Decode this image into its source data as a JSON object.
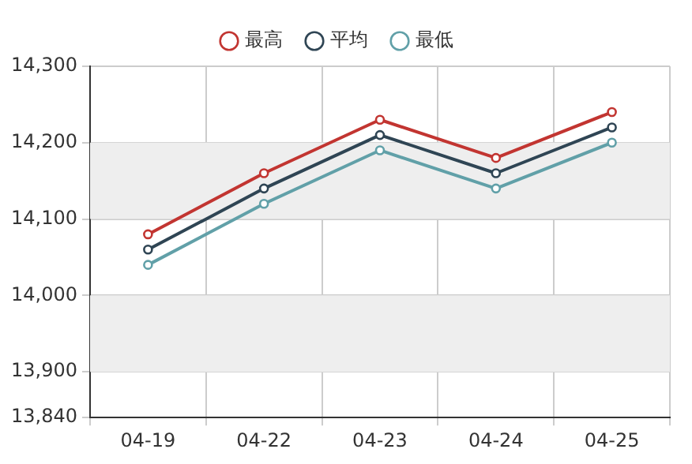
{
  "chart_data": {
    "type": "line",
    "categories": [
      "04-19",
      "04-22",
      "04-23",
      "04-24",
      "04-25"
    ],
    "series": [
      {
        "name": "最高",
        "color": "#c23531",
        "values": [
          14080,
          14160,
          14230,
          14180,
          14240
        ]
      },
      {
        "name": "平均",
        "color": "#2f4554",
        "values": [
          14060,
          14140,
          14210,
          14160,
          14220
        ]
      },
      {
        "name": "最低",
        "color": "#61a0a8",
        "values": [
          14040,
          14120,
          14190,
          14140,
          14200
        ]
      }
    ],
    "ylim": [
      13840,
      14300
    ],
    "yticks": [
      {
        "value": 13840,
        "label": "13,840"
      },
      {
        "value": 13900,
        "label": "13,900"
      },
      {
        "value": 14000,
        "label": "14,000"
      },
      {
        "value": 14100,
        "label": "14,100"
      },
      {
        "value": 14200,
        "label": "14,200"
      },
      {
        "value": 14300,
        "label": "14,300"
      }
    ],
    "bands": [
      {
        "axis": "y",
        "from": 13900,
        "to": 14000,
        "color": "#eeeeee"
      },
      {
        "axis": "y",
        "from": 14100,
        "to": 14200,
        "color": "#eeeeee"
      }
    ],
    "grid": true,
    "legend": "top",
    "marker": "circle",
    "line_style": "solid"
  }
}
